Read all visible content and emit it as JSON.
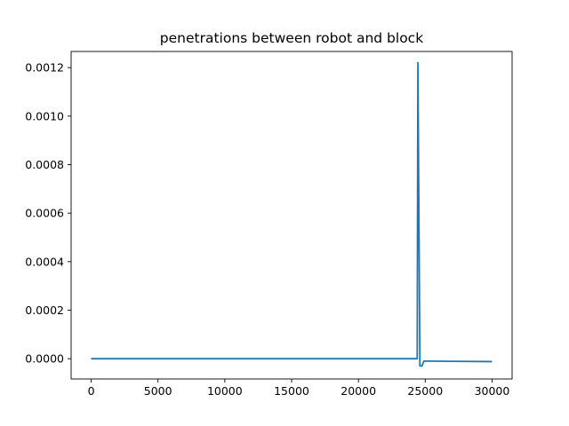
{
  "chart_data": {
    "type": "line",
    "title": "penetrations between robot and block",
    "xlabel": "",
    "ylabel": "",
    "xlim": [
      -1500,
      31500
    ],
    "ylim": [
      -8.35e-05,
      0.0012665
    ],
    "xticks": [
      0,
      5000,
      10000,
      15000,
      20000,
      25000,
      30000
    ],
    "xtick_labels": [
      "0",
      "5000",
      "10000",
      "15000",
      "20000",
      "25000",
      "30000"
    ],
    "yticks": [
      0.0,
      0.0002,
      0.0004,
      0.0006,
      0.0008,
      0.001,
      0.0012
    ],
    "ytick_labels": [
      "0.0000",
      "0.0002",
      "0.0004",
      "0.0006",
      "0.0008",
      "0.0010",
      "0.0012"
    ],
    "grid": false,
    "legend": "none",
    "color": "#1f77b4",
    "series": [
      {
        "x": [
          0,
          24400,
          24450,
          24600,
          24750,
          24900,
          25000,
          30000
        ],
        "y": [
          0.0,
          0.0,
          0.00122,
          -3e-05,
          -3e-05,
          -1e-05,
          -1e-05,
          -1.2e-05
        ]
      }
    ]
  }
}
